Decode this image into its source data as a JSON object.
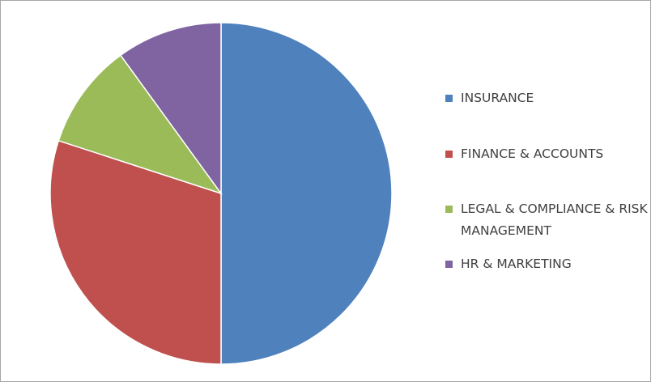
{
  "chart_data": {
    "type": "pie",
    "categories": [
      "INSURANCE",
      "FINANCE & ACCOUNTS",
      "LEGAL & COMPLIANCE & RISK MANAGEMENT",
      "HR & MARKETING"
    ],
    "values": [
      50,
      30,
      10,
      10
    ],
    "colors": [
      "#4f81bd",
      "#c0504d",
      "#9bbb59",
      "#8064a2"
    ],
    "legend": "right"
  }
}
